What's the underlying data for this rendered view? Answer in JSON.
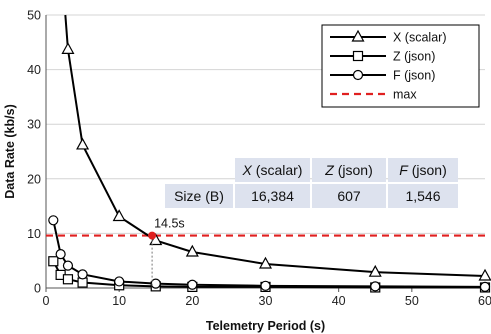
{
  "chart_data": {
    "type": "line",
    "xlabel": "Telemetry Period (s)",
    "ylabel": "Data Rate (kb/s)",
    "xlim": [
      0,
      60
    ],
    "ylim": [
      0,
      50
    ],
    "x_ticks": [
      0,
      10,
      20,
      30,
      40,
      50,
      60
    ],
    "y_ticks": [
      0,
      10,
      20,
      30,
      40,
      50
    ],
    "grid": "horizontal",
    "legend_position": "top-right",
    "series": [
      {
        "name": "X (scalar)",
        "marker": "triangle",
        "color": "#000000",
        "x": [
          3,
          5,
          10,
          15,
          20,
          30,
          45,
          60
        ],
        "y": [
          43.7,
          26.2,
          13.1,
          8.7,
          6.6,
          4.4,
          2.9,
          2.2
        ],
        "extends_above_axis": true
      },
      {
        "name": "Z (json)",
        "marker": "square",
        "color": "#000000",
        "x": [
          1,
          2,
          3,
          5,
          10,
          15,
          20,
          30,
          45,
          60
        ],
        "y": [
          4.9,
          2.4,
          1.6,
          1.0,
          0.5,
          0.3,
          0.2,
          0.2,
          0.1,
          0.1
        ]
      },
      {
        "name": "F (json)",
        "marker": "circle",
        "color": "#000000",
        "x": [
          1,
          2,
          3,
          5,
          10,
          15,
          20,
          30,
          45,
          60
        ],
        "y": [
          12.4,
          6.2,
          4.1,
          2.5,
          1.2,
          0.8,
          0.6,
          0.4,
          0.3,
          0.2
        ]
      }
    ],
    "max_line": {
      "name": "max",
      "y": 9.6,
      "color": "#e02020",
      "style": "dashed"
    },
    "annotation": {
      "label": "14.5s",
      "x": 14.5,
      "y": 9.6,
      "color": "#e02020"
    },
    "size_table": {
      "row_label": "Size (B)",
      "headers": [
        {
          "var": "X",
          "rest": " (scalar)"
        },
        {
          "var": "Z",
          "rest": " (json)"
        },
        {
          "var": "F",
          "rest": " (json)"
        }
      ],
      "values": [
        "16,384",
        "607",
        "1,546"
      ],
      "fill": "#dde2ee"
    }
  }
}
